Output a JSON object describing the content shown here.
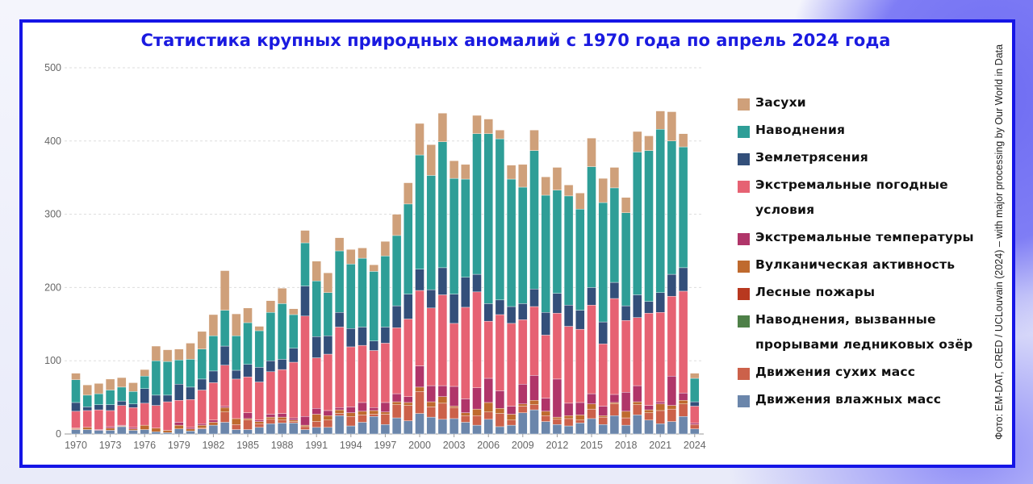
{
  "title": "Статистика крупных природных аномалий с 1970 года по апрель 2024 года",
  "source": "Фото: EM-DAT, CRED / UCLouvain (2024) – with major processing by Our World in Data",
  "chart_data": {
    "type": "bar",
    "stacked": true,
    "title": "Статистика крупных природных аномалий с 1970 года по апрель 2024 года",
    "xlabel": "",
    "ylabel": "",
    "ylim": [
      0,
      500
    ],
    "y_ticks": [
      0,
      100,
      200,
      300,
      400,
      500
    ],
    "x_ticks": [
      1970,
      1973,
      1976,
      1979,
      1982,
      1985,
      1988,
      1991,
      1994,
      1997,
      2000,
      2003,
      2006,
      2009,
      2012,
      2015,
      2018,
      2021,
      2024
    ],
    "x_start": 1970,
    "grid": true,
    "legend_position": "right",
    "legend_order": [
      "drought",
      "flood",
      "earthquake",
      "weather",
      "temps",
      "volcanic",
      "wildfire",
      "glacial",
      "dry",
      "wet"
    ],
    "series": [
      {
        "key": "wet",
        "name": "Движения влажных масс",
        "color": "#6b86ab",
        "values": [
          6,
          6,
          5,
          5,
          10,
          5,
          6,
          3,
          2,
          7,
          4,
          7,
          12,
          16,
          6,
          6,
          9,
          14,
          15,
          15,
          6,
          9,
          9,
          25,
          11,
          16,
          24,
          13,
          22,
          18,
          28,
          23,
          20,
          21,
          16,
          12,
          20,
          10,
          12,
          29,
          33,
          17,
          13,
          11,
          15,
          21,
          13,
          25,
          12,
          26,
          19,
          14,
          17,
          24,
          7
        ]
      },
      {
        "key": "dry",
        "name": "Движения сухих масс",
        "color": "#cc614a",
        "values": [
          1,
          0,
          0,
          0,
          0,
          0,
          0,
          0,
          0,
          0,
          0,
          1,
          0,
          14,
          7,
          13,
          5,
          6,
          4,
          2,
          4,
          8,
          10,
          3,
          13,
          10,
          3,
          14,
          18,
          21,
          30,
          14,
          22,
          15,
          9,
          13,
          10,
          18,
          7,
          9,
          7,
          8,
          7,
          10,
          4,
          13,
          10,
          16,
          10,
          14,
          10,
          18,
          17,
          17,
          6
        ]
      },
      {
        "key": "glacial",
        "name": "Наводнения, вызванные прорывами ледниковых озёр",
        "color": "#4e8048",
        "values": [
          0,
          0,
          0,
          0,
          0,
          0,
          0,
          0,
          0,
          0,
          0,
          0,
          0,
          0,
          0,
          0,
          0,
          0,
          0,
          0,
          0,
          0,
          0,
          0,
          0,
          0,
          0,
          0,
          0,
          0,
          0,
          0,
          0,
          0,
          0,
          0,
          0,
          0,
          0,
          0,
          0,
          0,
          0,
          0,
          0,
          0,
          0,
          0,
          0,
          0,
          0,
          0,
          0,
          0,
          0
        ]
      },
      {
        "key": "wildfire",
        "name": "Лесные пожары",
        "color": "#b8381f",
        "values": [
          0,
          0,
          0,
          0,
          0,
          0,
          0,
          0,
          0,
          0,
          0,
          0,
          0,
          0,
          0,
          0,
          0,
          0,
          0,
          0,
          0,
          0,
          0,
          0,
          0,
          0,
          0,
          0,
          0,
          0,
          0,
          0,
          0,
          0,
          0,
          0,
          0,
          0,
          0,
          0,
          0,
          0,
          0,
          0,
          0,
          0,
          0,
          0,
          0,
          0,
          0,
          0,
          0,
          0,
          0
        ]
      },
      {
        "key": "volcanic",
        "name": "Вулканическая активность",
        "color": "#bf6a2e",
        "values": [
          1,
          3,
          0,
          3,
          1,
          2,
          6,
          5,
          3,
          5,
          3,
          4,
          4,
          6,
          8,
          2,
          3,
          3,
          4,
          2,
          2,
          10,
          6,
          5,
          5,
          5,
          5,
          3,
          4,
          4,
          6,
          7,
          9,
          2,
          4,
          9,
          13,
          7,
          8,
          3,
          6,
          6,
          3,
          4,
          7,
          7,
          2,
          2,
          9,
          4,
          4,
          9,
          5,
          5,
          0
        ]
      },
      {
        "key": "temps",
        "name": "Экстремальные температуры",
        "color": "#b03569",
        "values": [
          0,
          0,
          1,
          2,
          1,
          2,
          0,
          0,
          0,
          4,
          2,
          2,
          3,
          2,
          0,
          8,
          2,
          4,
          5,
          3,
          12,
          8,
          7,
          3,
          8,
          12,
          4,
          13,
          11,
          8,
          29,
          22,
          15,
          27,
          19,
          29,
          33,
          24,
          11,
          27,
          34,
          18,
          52,
          17,
          17,
          14,
          13,
          11,
          26,
          22,
          6,
          3,
          40,
          10,
          2
        ]
      },
      {
        "key": "weather",
        "name": "Экстремальные погодные условия",
        "color": "#e66273",
        "values": [
          23,
          23,
          27,
          22,
          27,
          27,
          30,
          31,
          39,
          30,
          38,
          46,
          51,
          56,
          54,
          49,
          52,
          58,
          60,
          76,
          137,
          69,
          77,
          110,
          82,
          78,
          78,
          81,
          90,
          106,
          103,
          106,
          124,
          86,
          125,
          131,
          78,
          104,
          113,
          88,
          94,
          86,
          90,
          105,
          100,
          121,
          85,
          131,
          98,
          93,
          126,
          122,
          109,
          139,
          23
        ]
      },
      {
        "key": "earthquake",
        "name": "Землетрясения",
        "color": "#334f7a",
        "values": [
          12,
          5,
          7,
          8,
          6,
          5,
          20,
          14,
          9,
          22,
          17,
          15,
          16,
          26,
          12,
          17,
          20,
          15,
          14,
          19,
          41,
          29,
          25,
          20,
          25,
          25,
          13,
          22,
          30,
          34,
          29,
          25,
          37,
          40,
          41,
          24,
          24,
          20,
          23,
          22,
          24,
          31,
          27,
          29,
          26,
          24,
          30,
          22,
          20,
          31,
          16,
          27,
          30,
          32,
          6
        ]
      },
      {
        "key": "flood",
        "name": "Наводнения",
        "color": "#2e9e97",
        "values": [
          31,
          16,
          15,
          20,
          19,
          17,
          17,
          47,
          46,
          33,
          38,
          41,
          48,
          49,
          47,
          57,
          50,
          66,
          76,
          46,
          59,
          76,
          59,
          84,
          88,
          94,
          95,
          97,
          96,
          123,
          156,
          156,
          172,
          158,
          134,
          192,
          232,
          220,
          174,
          159,
          189,
          160,
          141,
          149,
          138,
          165,
          163,
          129,
          127,
          195,
          206,
          223,
          182,
          165,
          32
        ]
      },
      {
        "key": "drought",
        "name": "Засухи",
        "color": "#cfa07a",
        "values": [
          9,
          14,
          14,
          15,
          13,
          12,
          9,
          20,
          16,
          15,
          22,
          24,
          29,
          54,
          30,
          20,
          6,
          16,
          21,
          8,
          17,
          27,
          27,
          18,
          20,
          14,
          9,
          20,
          29,
          29,
          43,
          42,
          39,
          24,
          20,
          25,
          20,
          12,
          19,
          31,
          28,
          25,
          31,
          15,
          22,
          39,
          33,
          28,
          21,
          28,
          20,
          25,
          40,
          18,
          7
        ]
      }
    ]
  }
}
